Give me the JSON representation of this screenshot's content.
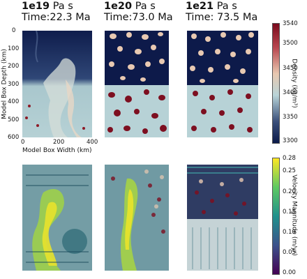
{
  "chart_data": [
    {
      "type": "heatmap",
      "quantity": "density",
      "panels": [
        {
          "viscosity": "1e19",
          "unit": "Pa s",
          "time_label": "Time:22.3 Ma"
        },
        {
          "viscosity": "1e20",
          "unit": "Pa s",
          "time_label": "Time:73.0 Ma"
        },
        {
          "viscosity": "1e21",
          "unit": "Pa s",
          "time_label": "Time: 73.5 Ma"
        }
      ],
      "ylabel": "Model Box Depth (km)",
      "xlabel": "Model Box Width (km)",
      "yticks": [
        "0",
        "100",
        "200",
        "300",
        "400",
        "500",
        "600"
      ],
      "xticks": [
        "0",
        "200",
        "400"
      ],
      "xlim": [
        0,
        400
      ],
      "ylim": [
        600,
        0
      ],
      "colorbar": {
        "label": "Density (kg/m³)",
        "ticks": [
          "3540",
          "3500",
          "3450",
          "3400",
          "3350",
          "3300"
        ],
        "range": [
          3300,
          3540
        ],
        "colors": [
          "#7a0a1c",
          "#b8464f",
          "#e8c8b0",
          "#b9d4d8",
          "#3a4f7a",
          "#0b1a4a"
        ]
      }
    },
    {
      "type": "heatmap",
      "quantity": "velocity magnitude",
      "panels": [
        {
          "viscosity": "1e19"
        },
        {
          "viscosity": "1e20"
        },
        {
          "viscosity": "1e21"
        }
      ],
      "colorbar": {
        "label": "Velocity Magnitude (m/yr)",
        "ticks": [
          "0.28",
          "0.25",
          "0.20",
          "0.15",
          "0.10",
          "0.05",
          "0.00"
        ],
        "range": [
          0.0,
          0.28
        ],
        "colors": [
          "#fde725",
          "#5ec962",
          "#21918c",
          "#3b528b",
          "#440154"
        ]
      }
    }
  ]
}
